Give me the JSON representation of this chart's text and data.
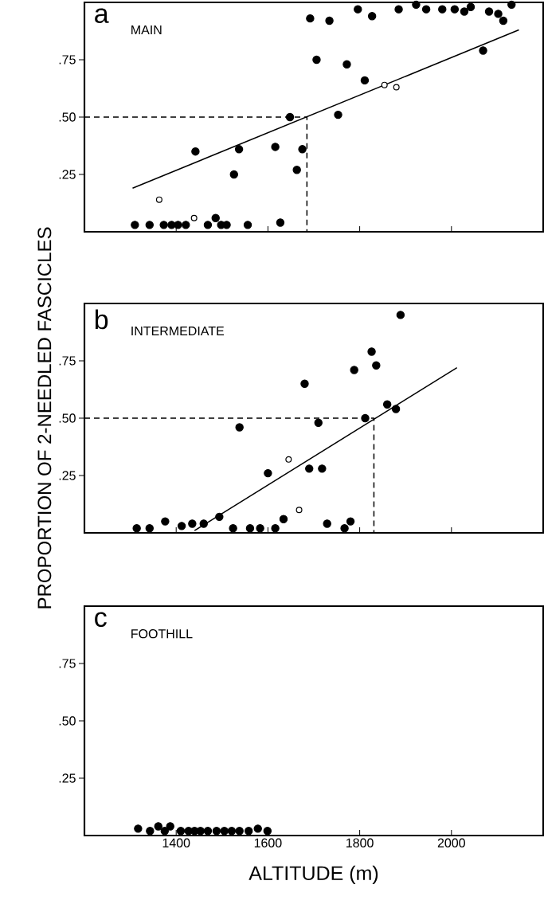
{
  "chart_data": [
    {
      "type": "scatter",
      "title": "a",
      "subtitle": "MAIN",
      "xlim": [
        1200,
        2200
      ],
      "ylim": [
        0,
        1
      ],
      "xticks": [
        1400,
        1600,
        1800,
        2000
      ],
      "yticks": [
        {
          "value": 0.25,
          "label": ".25"
        },
        {
          "value": 0.5,
          "label": ".50"
        },
        {
          "value": 0.75,
          "label": ".75"
        }
      ],
      "tick_labels": "y",
      "grid": false,
      "series": [
        {
          "color": "#000000",
          "x": [
            1310,
            1342,
            1373,
            1390,
            1404,
            1421,
            1442,
            1469,
            1486,
            1498,
            1510,
            1526,
            1537,
            1556,
            1616,
            1627,
            1648,
            1663,
            1675,
            1692,
            1706,
            1734,
            1753,
            1772,
            1796,
            1811,
            1827,
            1885,
            1923,
            1945,
            1980,
            2007,
            2028,
            2042,
            2069,
            2082,
            2102,
            2113,
            2131
          ],
          "values": [
            0.03,
            0.03,
            0.03,
            0.03,
            0.03,
            0.03,
            0.35,
            0.03,
            0.06,
            0.03,
            0.03,
            0.25,
            0.36,
            0.03,
            0.37,
            0.04,
            0.5,
            0.27,
            0.36,
            0.93,
            0.75,
            0.92,
            0.51,
            0.73,
            0.97,
            0.66,
            0.94,
            0.97,
            0.99,
            0.97,
            0.97,
            0.97,
            0.96,
            0.98,
            0.79,
            0.96,
            0.95,
            0.92,
            0.99
          ]
        },
        {
          "color": "#ffffff",
          "x": [
            1363,
            1439,
            1854,
            1880
          ],
          "values": [
            0.14,
            0.06,
            0.64,
            0.63
          ]
        },
        {
          "type": "line",
          "marker": "none",
          "color": "#000000",
          "line_style": "solid",
          "x": [
            1305,
            2147
          ],
          "values": [
            0.19,
            0.88
          ]
        },
        {
          "type": "line",
          "marker": "none",
          "color": "#000000",
          "line_style": "dashed",
          "x": [
            1200,
            1685,
            1685
          ],
          "values": [
            0.5,
            0.5,
            0
          ]
        }
      ]
    },
    {
      "type": "scatter",
      "title": "b",
      "subtitle": "INTERMEDIATE",
      "ylabel": "PROPORTION OF 2-NEEDLED FASCICLES",
      "xlim": [
        1200,
        2200
      ],
      "ylim": [
        0,
        1
      ],
      "xticks": [
        1400,
        1600,
        1800,
        2000
      ],
      "yticks": [
        {
          "value": 0.25,
          "label": ".25"
        },
        {
          "value": 0.5,
          "label": ".50"
        },
        {
          "value": 0.75,
          "label": ".75"
        }
      ],
      "tick_labels": "y",
      "grid": false,
      "series": [
        {
          "color": "#000000",
          "x": [
            1314,
            1342,
            1376,
            1412,
            1435,
            1460,
            1494,
            1538,
            1524,
            1561,
            1583,
            1600,
            1616,
            1634,
            1680,
            1690,
            1710,
            1718,
            1729,
            1767,
            1780,
            1788,
            1812,
            1826,
            1836,
            1860,
            1879,
            1889
          ],
          "values": [
            0.02,
            0.02,
            0.05,
            0.03,
            0.04,
            0.04,
            0.07,
            0.46,
            0.02,
            0.02,
            0.02,
            0.26,
            0.02,
            0.06,
            0.65,
            0.28,
            0.48,
            0.28,
            0.04,
            0.02,
            0.05,
            0.71,
            0.5,
            0.79,
            0.73,
            0.56,
            0.54,
            0.95
          ]
        },
        {
          "color": "#ffffff",
          "x": [
            1645,
            1668
          ],
          "values": [
            0.32,
            0.1
          ]
        },
        {
          "type": "line",
          "marker": "none",
          "color": "#000000",
          "line_style": "solid",
          "x": [
            1440,
            2012
          ],
          "values": [
            0.01,
            0.72
          ]
        },
        {
          "type": "line",
          "marker": "none",
          "color": "#000000",
          "line_style": "dashed",
          "x": [
            1200,
            1831,
            1831
          ],
          "values": [
            0.5,
            0.5,
            0
          ]
        }
      ]
    },
    {
      "type": "scatter",
      "title": "c",
      "subtitle": "FOOTHILL",
      "xlabel": "ALTITUDE (m)",
      "xlim": [
        1200,
        2200
      ],
      "ylim": [
        0,
        1
      ],
      "xticks": [
        1400,
        1600,
        1800,
        2000
      ],
      "yticks": [
        {
          "value": 0.25,
          "label": ".25"
        },
        {
          "value": 0.5,
          "label": ".50"
        },
        {
          "value": 0.75,
          "label": ".75"
        }
      ],
      "grid": false,
      "series": [
        {
          "color": "#000000",
          "x": [
            1317,
            1343,
            1361,
            1375,
            1387,
            1410,
            1427,
            1440,
            1453,
            1469,
            1488,
            1505,
            1521,
            1538,
            1558,
            1578,
            1599
          ],
          "values": [
            0.03,
            0.02,
            0.04,
            0.02,
            0.04,
            0.02,
            0.02,
            0.02,
            0.02,
            0.02,
            0.02,
            0.02,
            0.02,
            0.02,
            0.02,
            0.03,
            0.02
          ]
        }
      ]
    }
  ]
}
